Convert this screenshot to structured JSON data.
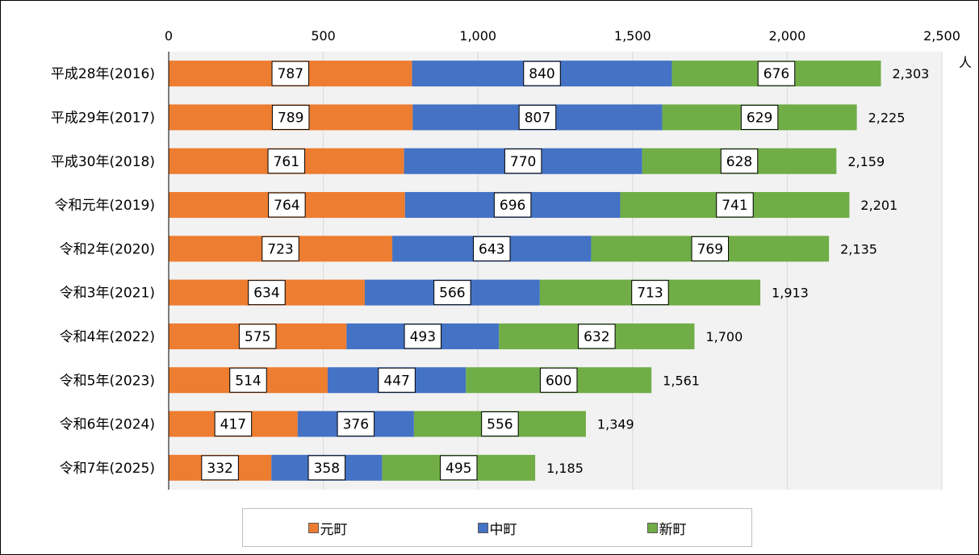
{
  "chart_data": {
    "type": "bar",
    "orientation": "horizontal",
    "stacked": true,
    "unit": "人",
    "categories": [
      "平成28年(2016)",
      "平成29年(2017)",
      "平成30年(2018)",
      "令和元年(2019)",
      "令和2年(2020)",
      "令和3年(2021)",
      "令和4年(2022)",
      "令和5年(2023)",
      "令和6年(2024)",
      "令和7年(2025)"
    ],
    "series": [
      {
        "name": "元町",
        "color": "#ED7D31",
        "values": [
          787,
          789,
          761,
          764,
          723,
          634,
          575,
          514,
          417,
          332
        ]
      },
      {
        "name": "中町",
        "color": "#4472C4",
        "values": [
          840,
          807,
          770,
          696,
          643,
          566,
          493,
          447,
          376,
          358
        ]
      },
      {
        "name": "新町",
        "color": "#70AD47",
        "values": [
          676,
          629,
          628,
          741,
          769,
          713,
          632,
          600,
          556,
          495
        ]
      }
    ],
    "totals": [
      "2,303",
      "2,225",
      "2,159",
      "2,201",
      "2,135",
      "1,913",
      "1,700",
      "1,561",
      "1,349",
      "1,185"
    ],
    "xlim": [
      0,
      2500
    ],
    "xticks": [
      0,
      500,
      1000,
      1500,
      2000,
      2500
    ],
    "xtick_labels": [
      "0",
      "500",
      "1,000",
      "1,500",
      "2,000",
      "2,500"
    ],
    "grid": true,
    "legend_position": "bottom",
    "plot_background": "#F2F2F2"
  }
}
